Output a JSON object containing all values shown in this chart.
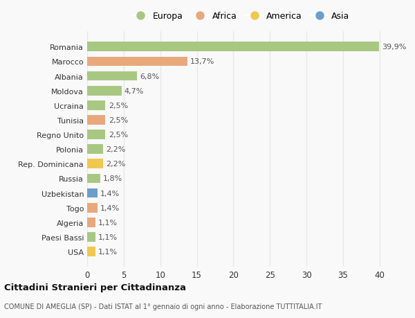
{
  "countries": [
    "Romania",
    "Marocco",
    "Albania",
    "Moldova",
    "Ucraina",
    "Tunisia",
    "Regno Unito",
    "Polonia",
    "Rep. Dominicana",
    "Russia",
    "Uzbekistan",
    "Togo",
    "Algeria",
    "Paesi Bassi",
    "USA"
  ],
  "values": [
    39.9,
    13.7,
    6.8,
    4.7,
    2.5,
    2.5,
    2.5,
    2.2,
    2.2,
    1.8,
    1.4,
    1.4,
    1.1,
    1.1,
    1.1
  ],
  "labels": [
    "39,9%",
    "13,7%",
    "6,8%",
    "4,7%",
    "2,5%",
    "2,5%",
    "2,5%",
    "2,2%",
    "2,2%",
    "1,8%",
    "1,4%",
    "1,4%",
    "1,1%",
    "1,1%",
    "1,1%"
  ],
  "continents": [
    "Europa",
    "Africa",
    "Europa",
    "Europa",
    "Europa",
    "Africa",
    "Europa",
    "Europa",
    "America",
    "Europa",
    "Asia",
    "Africa",
    "Africa",
    "Europa",
    "America"
  ],
  "colors": {
    "Europa": "#a8c882",
    "Africa": "#e8a87c",
    "America": "#f0c850",
    "Asia": "#6b9fc8"
  },
  "xlim": [
    0,
    42
  ],
  "xticks": [
    0,
    5,
    10,
    15,
    20,
    25,
    30,
    35,
    40
  ],
  "title": "Cittadini Stranieri per Cittadinanza",
  "subtitle": "COMUNE DI AMEGLIA (SP) - Dati ISTAT al 1° gennaio di ogni anno - Elaborazione TUTTITALIA.IT",
  "background_color": "#f9f9f9",
  "grid_color": "#e8e8e8",
  "bar_height": 0.65,
  "label_fontsize": 8.0,
  "ytick_fontsize": 8.0,
  "xtick_fontsize": 8.5,
  "legend_entries": [
    "Europa",
    "Africa",
    "America",
    "Asia"
  ]
}
